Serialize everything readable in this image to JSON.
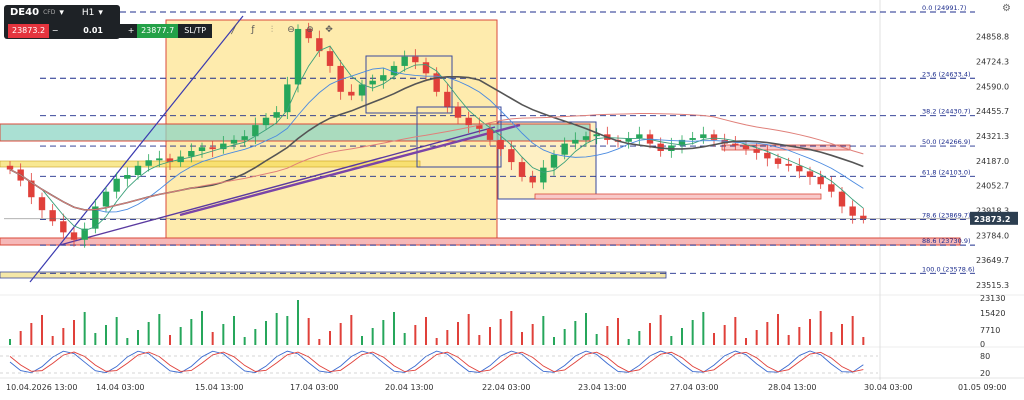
{
  "toolbar": {
    "symbol": "DE40",
    "instrument_type": "CFD",
    "timeframe": "H1",
    "sell_price": "23873.2",
    "lot_size": "0.01",
    "buy_price": "23877.7",
    "sltp_label": "SL/TP",
    "icons": [
      "trendline-icon",
      "indicator-icon",
      "bar-style-icon",
      "zoom-out-icon",
      "zoom-in-icon",
      "crosshair-icon"
    ]
  },
  "price_axis": {
    "ticks": [
      "24858.8",
      "24724.3",
      "24590.0",
      "24455.7",
      "24321.3",
      "24187.0",
      "24052.7",
      "23918.3",
      "23784.0",
      "23649.7",
      "23515.3"
    ],
    "current_price": "23873.2"
  },
  "fib_levels": [
    {
      "label": "0.0 (24991.7)",
      "value": 24991.7
    },
    {
      "label": "23.6 (24633.4)",
      "value": 24633.4
    },
    {
      "label": "38.2 (24430.7)",
      "value": 24430.7
    },
    {
      "label": "50.0 (24266.9)",
      "value": 24266.9
    },
    {
      "label": "61.8 (24103.0)",
      "value": 24103.0
    },
    {
      "label": "78.6 (23869.7)",
      "value": 23869.7
    },
    {
      "label": "88.6 (23730.9)",
      "value": 23730.9
    },
    {
      "label": "100.0 (23578.6)",
      "value": 23578.6
    }
  ],
  "volume_axis": {
    "ticks": [
      "23130",
      "15420",
      "7710",
      "0"
    ]
  },
  "oscillator_axis": {
    "ticks": [
      "80",
      "20"
    ]
  },
  "time_axis": {
    "ticks": [
      "10.04.2026 13:00",
      "14.04 03:00",
      "15.04 13:00",
      "17.04 03:00",
      "20.04 13:00",
      "22.04 03:00",
      "23.04 13:00",
      "27.04 03:00",
      "28.04 13:00",
      "30.04 03:00",
      "01.05 09:00"
    ]
  },
  "colors": {
    "bull": "#26a65b",
    "bear": "#e0403a",
    "fib": "#1c2c8c",
    "zone_yellow": "#fde28a",
    "zone_teal": "#8ed6c4"
  },
  "chart_data": {
    "type": "candlestick",
    "symbol": "DE40",
    "timeframe": "H1",
    "ylim": [
      23515.3,
      24991.7
    ],
    "closes": [
      24140,
      24080,
      23990,
      23920,
      23860,
      23800,
      23760,
      23820,
      23940,
      24020,
      24090,
      24110,
      24160,
      24190,
      24200,
      24180,
      24210,
      24240,
      24260,
      24250,
      24280,
      24300,
      24320,
      24380,
      24420,
      24450,
      24600,
      24900,
      24850,
      24780,
      24700,
      24560,
      24540,
      24600,
      24620,
      24650,
      24700,
      24750,
      24720,
      24660,
      24560,
      24480,
      24420,
      24380,
      24360,
      24300,
      24250,
      24180,
      24100,
      24070,
      24150,
      24220,
      24280,
      24300,
      24320,
      24330,
      24300,
      24290,
      24310,
      24330,
      24280,
      24240,
      24270,
      24300,
      24310,
      24330,
      24300,
      24280,
      24270,
      24250,
      24230,
      24200,
      24170,
      24160,
      24130,
      24100,
      24060,
      24020,
      23940,
      23890,
      23873
    ]
  }
}
